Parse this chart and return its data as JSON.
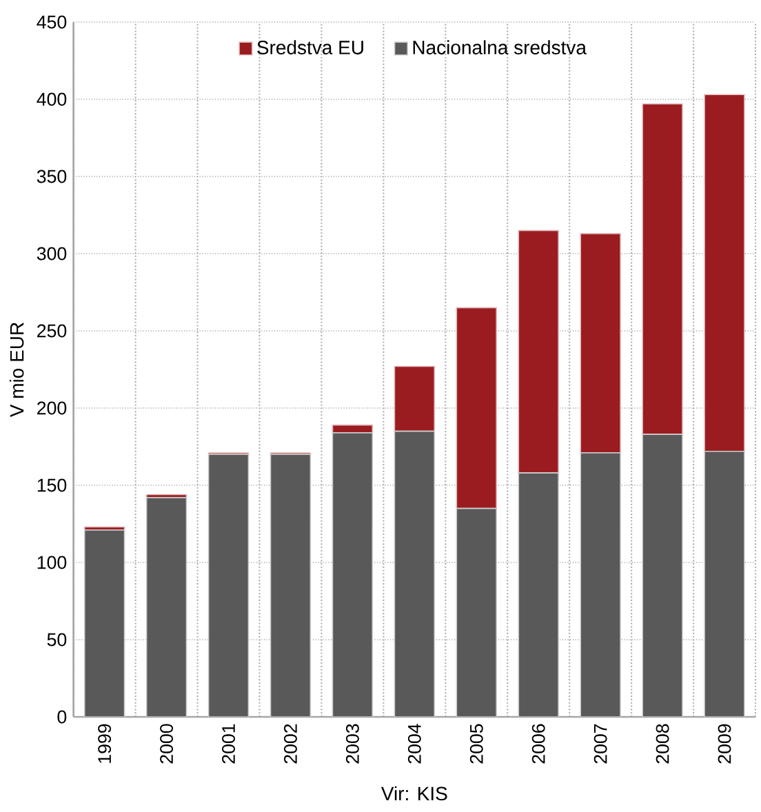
{
  "chart_data": {
    "type": "bar",
    "stacked": true,
    "categories": [
      "1999",
      "2000",
      "2001",
      "2002",
      "2003",
      "2004",
      "2005",
      "2006",
      "2007",
      "2008",
      "2009"
    ],
    "series": [
      {
        "name": "Nacionalna sredstva",
        "color": "#595959",
        "values": [
          121,
          142,
          170,
          170,
          184,
          185,
          135,
          158,
          171,
          183,
          172
        ]
      },
      {
        "name": "Sredstva EU",
        "color": "#9b1c20",
        "values": [
          2,
          2,
          1,
          1,
          5,
          42,
          130,
          157,
          142,
          214,
          231
        ]
      }
    ],
    "ylabel": "V mio EUR",
    "annotations": [
      "Vir: KIS"
    ],
    "ylim": [
      0,
      450
    ],
    "yticks": [
      0,
      50,
      100,
      150,
      200,
      250,
      300,
      350,
      400,
      450
    ],
    "grid": true,
    "legend": "top"
  }
}
